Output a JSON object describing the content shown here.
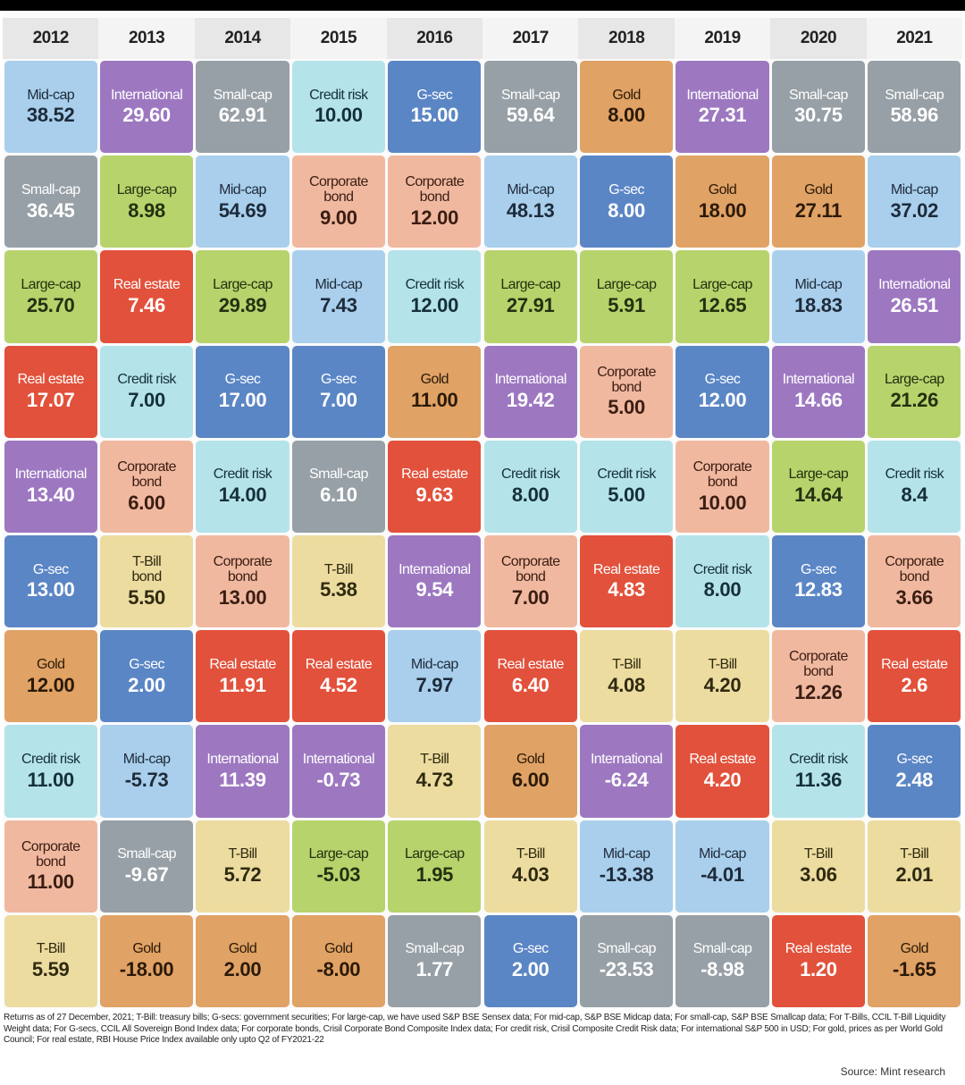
{
  "chart_data": {
    "type": "table",
    "years": [
      "2012",
      "2013",
      "2014",
      "2015",
      "2016",
      "2017",
      "2018",
      "2019",
      "2020",
      "2021"
    ],
    "columns": [
      [
        {
          "asset": "Mid-cap",
          "value": "38.52"
        },
        {
          "asset": "Small-cap",
          "value": "36.45"
        },
        {
          "asset": "Large-cap",
          "value": "25.70"
        },
        {
          "asset": "Real estate",
          "value": "17.07"
        },
        {
          "asset": "International",
          "value": "13.40"
        },
        {
          "asset": "G-sec",
          "value": "13.00"
        },
        {
          "asset": "Gold",
          "value": "12.00"
        },
        {
          "asset": "Credit risk",
          "value": "11.00"
        },
        {
          "asset": "Corporate bond",
          "value": "11.00"
        },
        {
          "asset": "T-Bill",
          "value": "5.59"
        }
      ],
      [
        {
          "asset": "International",
          "value": "29.60"
        },
        {
          "asset": "Large-cap",
          "value": "8.98"
        },
        {
          "asset": "Real estate",
          "value": "7.46"
        },
        {
          "asset": "Credit risk",
          "value": "7.00"
        },
        {
          "asset": "Corporate bond",
          "value": "6.00"
        },
        {
          "asset": "T-Bill bond",
          "value": "5.50"
        },
        {
          "asset": "G-sec",
          "value": "2.00"
        },
        {
          "asset": "Mid-cap",
          "value": "-5.73"
        },
        {
          "asset": "Small-cap",
          "value": "-9.67"
        },
        {
          "asset": "Gold",
          "value": "-18.00"
        }
      ],
      [
        {
          "asset": "Small-cap",
          "value": "62.91"
        },
        {
          "asset": "Mid-cap",
          "value": "54.69"
        },
        {
          "asset": "Large-cap",
          "value": "29.89"
        },
        {
          "asset": "G-sec",
          "value": "17.00"
        },
        {
          "asset": "Credit risk",
          "value": "14.00"
        },
        {
          "asset": "Corporate bond",
          "value": "13.00"
        },
        {
          "asset": "Real estate",
          "value": "11.91"
        },
        {
          "asset": "International",
          "value": "11.39"
        },
        {
          "asset": "T-Bill",
          "value": "5.72"
        },
        {
          "asset": "Gold",
          "value": "2.00"
        }
      ],
      [
        {
          "asset": "Credit risk",
          "value": "10.00"
        },
        {
          "asset": "Corporate bond",
          "value": "9.00"
        },
        {
          "asset": "Mid-cap",
          "value": "7.43"
        },
        {
          "asset": "G-sec",
          "value": "7.00"
        },
        {
          "asset": "Small-cap",
          "value": "6.10"
        },
        {
          "asset": "T-Bill",
          "value": "5.38"
        },
        {
          "asset": "Real estate",
          "value": "4.52"
        },
        {
          "asset": "International",
          "value": "-0.73"
        },
        {
          "asset": "Large-cap",
          "value": "-5.03"
        },
        {
          "asset": "Gold",
          "value": "-8.00"
        }
      ],
      [
        {
          "asset": "G-sec",
          "value": "15.00"
        },
        {
          "asset": "Corporate bond",
          "value": "12.00"
        },
        {
          "asset": "Credit risk",
          "value": "12.00"
        },
        {
          "asset": "Gold",
          "value": "11.00"
        },
        {
          "asset": "Real estate",
          "value": "9.63"
        },
        {
          "asset": "International",
          "value": "9.54"
        },
        {
          "asset": "Mid-cap",
          "value": "7.97"
        },
        {
          "asset": "T-Bill",
          "value": "4.73"
        },
        {
          "asset": "Large-cap",
          "value": "1.95"
        },
        {
          "asset": "Small-cap",
          "value": "1.77"
        }
      ],
      [
        {
          "asset": "Small-cap",
          "value": "59.64"
        },
        {
          "asset": "Mid-cap",
          "value": "48.13"
        },
        {
          "asset": "Large-cap",
          "value": "27.91"
        },
        {
          "asset": "International",
          "value": "19.42"
        },
        {
          "asset": "Credit risk",
          "value": "8.00"
        },
        {
          "asset": "Corporate bond",
          "value": "7.00"
        },
        {
          "asset": "Real estate",
          "value": "6.40"
        },
        {
          "asset": "Gold",
          "value": "6.00"
        },
        {
          "asset": "T-Bill",
          "value": "4.03"
        },
        {
          "asset": "G-sec",
          "value": "2.00"
        }
      ],
      [
        {
          "asset": "Gold",
          "value": "8.00"
        },
        {
          "asset": "G-sec",
          "value": "8.00"
        },
        {
          "asset": "Large-cap",
          "value": "5.91"
        },
        {
          "asset": "Corporate bond",
          "value": "5.00"
        },
        {
          "asset": "Credit risk",
          "value": "5.00"
        },
        {
          "asset": "Real estate",
          "value": "4.83"
        },
        {
          "asset": "T-Bill",
          "value": "4.08"
        },
        {
          "asset": "International",
          "value": "-6.24"
        },
        {
          "asset": "Mid-cap",
          "value": "-13.38"
        },
        {
          "asset": "Small-cap",
          "value": "-23.53"
        }
      ],
      [
        {
          "asset": "International",
          "value": "27.31"
        },
        {
          "asset": "Gold",
          "value": "18.00"
        },
        {
          "asset": "Large-cap",
          "value": "12.65"
        },
        {
          "asset": "G-sec",
          "value": "12.00"
        },
        {
          "asset": "Corporate bond",
          "value": "10.00"
        },
        {
          "asset": "Credit risk",
          "value": "8.00"
        },
        {
          "asset": "T-Bill",
          "value": "4.20"
        },
        {
          "asset": "Real estate",
          "value": "4.20"
        },
        {
          "asset": "Mid-cap",
          "value": "-4.01"
        },
        {
          "asset": "Small-cap",
          "value": "-8.98"
        }
      ],
      [
        {
          "asset": "Small-cap",
          "value": "30.75"
        },
        {
          "asset": "Gold",
          "value": "27.11"
        },
        {
          "asset": "Mid-cap",
          "value": "18.83"
        },
        {
          "asset": "International",
          "value": "14.66"
        },
        {
          "asset": "Large-cap",
          "value": "14.64"
        },
        {
          "asset": "G-sec",
          "value": "12.83"
        },
        {
          "asset": "Corporate bond",
          "value": "12.26"
        },
        {
          "asset": "Credit risk",
          "value": "11.36"
        },
        {
          "asset": "T-Bill",
          "value": "3.06"
        },
        {
          "asset": "Real estate",
          "value": "1.20"
        }
      ],
      [
        {
          "asset": "Small-cap",
          "value": "58.96"
        },
        {
          "asset": "Mid-cap",
          "value": "37.02"
        },
        {
          "asset": "International",
          "value": "26.51"
        },
        {
          "asset": "Large-cap",
          "value": "21.26"
        },
        {
          "asset": "Credit risk",
          "value": "8.4"
        },
        {
          "asset": "Corporate bond",
          "value": "3.66"
        },
        {
          "asset": "Real estate",
          "value": "2.6"
        },
        {
          "asset": "G-sec",
          "value": "2.48"
        },
        {
          "asset": "T-Bill",
          "value": "2.01"
        },
        {
          "asset": "Gold",
          "value": "-1.65"
        }
      ]
    ],
    "colors": {
      "Mid-cap": {
        "bg": "#a9cfec",
        "fg": "#1e2b3a"
      },
      "Small-cap": {
        "bg": "#97a0a6",
        "fg": "#ffffff"
      },
      "Large-cap": {
        "bg": "#b7d36c",
        "fg": "#243010"
      },
      "Real estate": {
        "bg": "#e2513b",
        "fg": "#ffffff"
      },
      "International": {
        "bg": "#9d78c1",
        "fg": "#ffffff"
      },
      "G-sec": {
        "bg": "#5b86c5",
        "fg": "#ffffff"
      },
      "Gold": {
        "bg": "#e0a265",
        "fg": "#2b1a08"
      },
      "Credit risk": {
        "bg": "#b5e3ea",
        "fg": "#15303a"
      },
      "Corporate bond": {
        "bg": "#f1b8a0",
        "fg": "#3a1e12"
      },
      "T-Bill": {
        "bg": "#ecdca0",
        "fg": "#2f2a10"
      },
      "T-Bill bond": {
        "bg": "#ecdca0",
        "fg": "#2f2a10"
      }
    }
  },
  "footnote": "Returns as of 27 December, 2021; T-Bill: treasury bills; G-secs: government securities; For large-cap, we have used S&P BSE Sensex data; For mid-cap, S&P BSE Midcap data; For small-cap, S&P BSE Smallcap data; For T-Bills, CCIL T-Bill Liquidity Weight data; For G-secs, CCIL All Sovereign Bond Index data; For corporate bonds, Crisil Corporate Bond Composite Index data; For credit risk, Crisil Composite Credit Risk data; For international S&P 500 in USD; For gold, prices as per World Gold Council; For real estate, RBI House Price Index available only upto Q2 of FY2021-22",
  "source": "Source: Mint research"
}
